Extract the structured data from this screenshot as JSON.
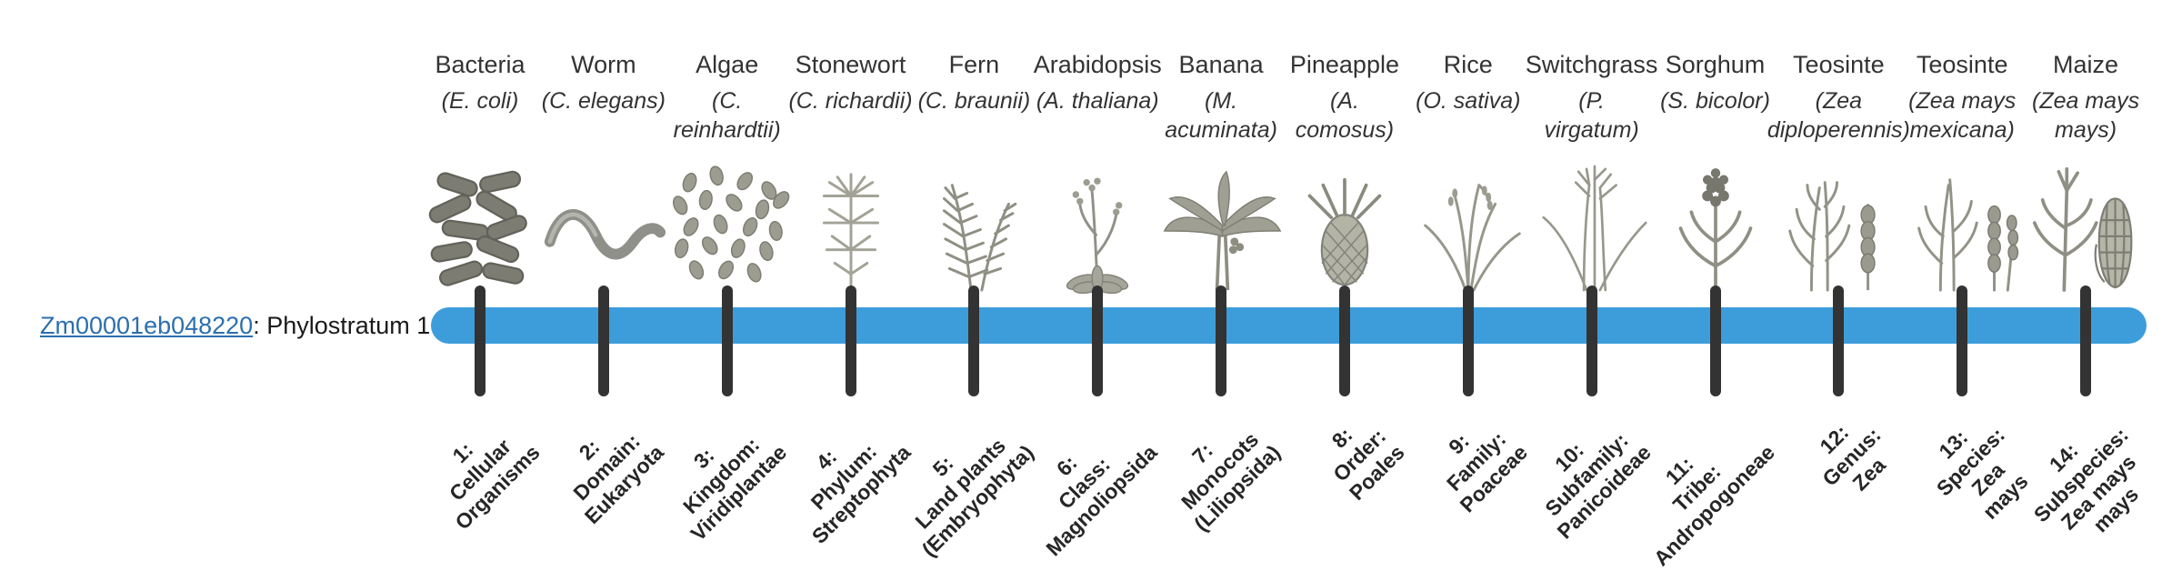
{
  "gene": {
    "id": "Zm00001eb048220",
    "suffix": ": Phylostratum 1"
  },
  "colors": {
    "bar": "#3d9dda",
    "tick": "#333333",
    "link": "#2c6fad",
    "text": "#333333"
  },
  "timeline": {
    "organisms": [
      {
        "key": "bacteria",
        "common": "Bacteria",
        "sci": "(E. coli)",
        "icon": "bacteria-icon",
        "stratum": "1:\nCellular\nOrganisms"
      },
      {
        "key": "worm",
        "common": "Worm",
        "sci": "(C. elegans)",
        "icon": "worm-icon",
        "stratum": "2:\nDomain:\nEukaryota"
      },
      {
        "key": "algae",
        "common": "Algae",
        "sci": "(C.\nreinhardtii)",
        "icon": "algae-icon",
        "stratum": "3:\nKingdom:\nViridiplantae"
      },
      {
        "key": "stonewort",
        "common": "Stonewort",
        "sci": "(C. richardii)",
        "icon": "stonewort-icon",
        "stratum": "4:\nPhylum:\nStreptophyta"
      },
      {
        "key": "fern",
        "common": "Fern",
        "sci": "(C. braunii)",
        "icon": "fern-icon",
        "stratum": "5:\nLand plants\n(Embryophyta)"
      },
      {
        "key": "arabidopsis",
        "common": "Arabidopsis",
        "sci": "(A. thaliana)",
        "icon": "arabidopsis-icon",
        "stratum": "6:\nClass:\nMagnoliopsida"
      },
      {
        "key": "banana",
        "common": "Banana",
        "sci": "(M.\nacuminata)",
        "icon": "banana-icon",
        "stratum": "7:\nMonocots\n(Liliopsida)"
      },
      {
        "key": "pineapple",
        "common": "Pineapple",
        "sci": "(A.\ncomosus)",
        "icon": "pineapple-icon",
        "stratum": "8:\nOrder:\nPoales"
      },
      {
        "key": "rice",
        "common": "Rice",
        "sci": "(O. sativa)",
        "icon": "rice-icon",
        "stratum": "9:\nFamily:\nPoaceae"
      },
      {
        "key": "switchgrass",
        "common": "Switchgrass",
        "sci": "(P.\nvirgatum)",
        "icon": "switchgrass-icon",
        "stratum": "10:\nSubfamily:\nPanicoideae"
      },
      {
        "key": "sorghum",
        "common": "Sorghum",
        "sci": "(S. bicolor)",
        "icon": "sorghum-icon",
        "stratum": "11:\nTribe:\nAndropogoneae"
      },
      {
        "key": "teosinte-diploperennis",
        "common": "Teosinte",
        "sci": "(Zea\ndiploperennis)",
        "icon": "teosinte-icon",
        "stratum": "12:\nGenus:\nZea"
      },
      {
        "key": "teosinte-mexicana",
        "common": "Teosinte",
        "sci": "(Zea mays\nmexicana)",
        "icon": "teosinte-mexicana-icon",
        "stratum": "13:\nSpecies:\nZea\nmays"
      },
      {
        "key": "maize",
        "common": "Maize",
        "sci": "(Zea mays\nmays)",
        "icon": "maize-icon",
        "stratum": "14:\nSubspecies:\nZea mays\nmays"
      }
    ]
  }
}
